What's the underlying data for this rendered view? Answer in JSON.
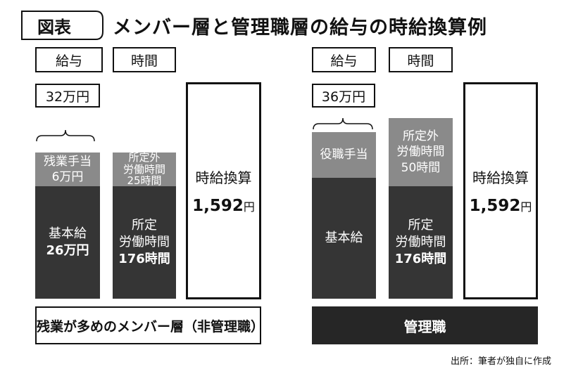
{
  "header": {
    "figure_label": "図表",
    "title": "メンバー層と管理職層の給与の時給換算例"
  },
  "left": {
    "salary_header": "給与",
    "time_header": "時間",
    "salary_total": "32万円",
    "salary_bar": {
      "top_line1": "残業手当",
      "top_line2": "6万円",
      "bottom_line1": "基本給",
      "bottom_line2": "26万円"
    },
    "time_bar": {
      "top_line1": "所定外",
      "top_line2": "労働時間",
      "top_line3": "25時間",
      "bottom_line1": "所定",
      "bottom_line2": "労働時間",
      "bottom_line3": "176時間"
    },
    "rate": {
      "label": "時給換算",
      "value": "1,592",
      "unit": "円"
    },
    "footer": "残業が多めのメンバー層（非管理職）"
  },
  "right": {
    "salary_header": "給与",
    "time_header": "時間",
    "salary_total": "36万円",
    "salary_bar": {
      "top_line1": "役職手当",
      "bottom_line1": "基本給"
    },
    "time_bar": {
      "top_line1": "所定外",
      "top_line2": "労働時間",
      "top_line3": "50時間",
      "bottom_line1": "所定",
      "bottom_line2": "労働時間",
      "bottom_line3": "176時間"
    },
    "rate": {
      "label": "時給換算",
      "value": "1,592",
      "unit": "円"
    },
    "footer": "管理職"
  },
  "source": "出所：筆者が独自に作成",
  "colors": {
    "dark": "#353535",
    "mid": "#8a8a8a",
    "footer_dark": "#262626"
  }
}
